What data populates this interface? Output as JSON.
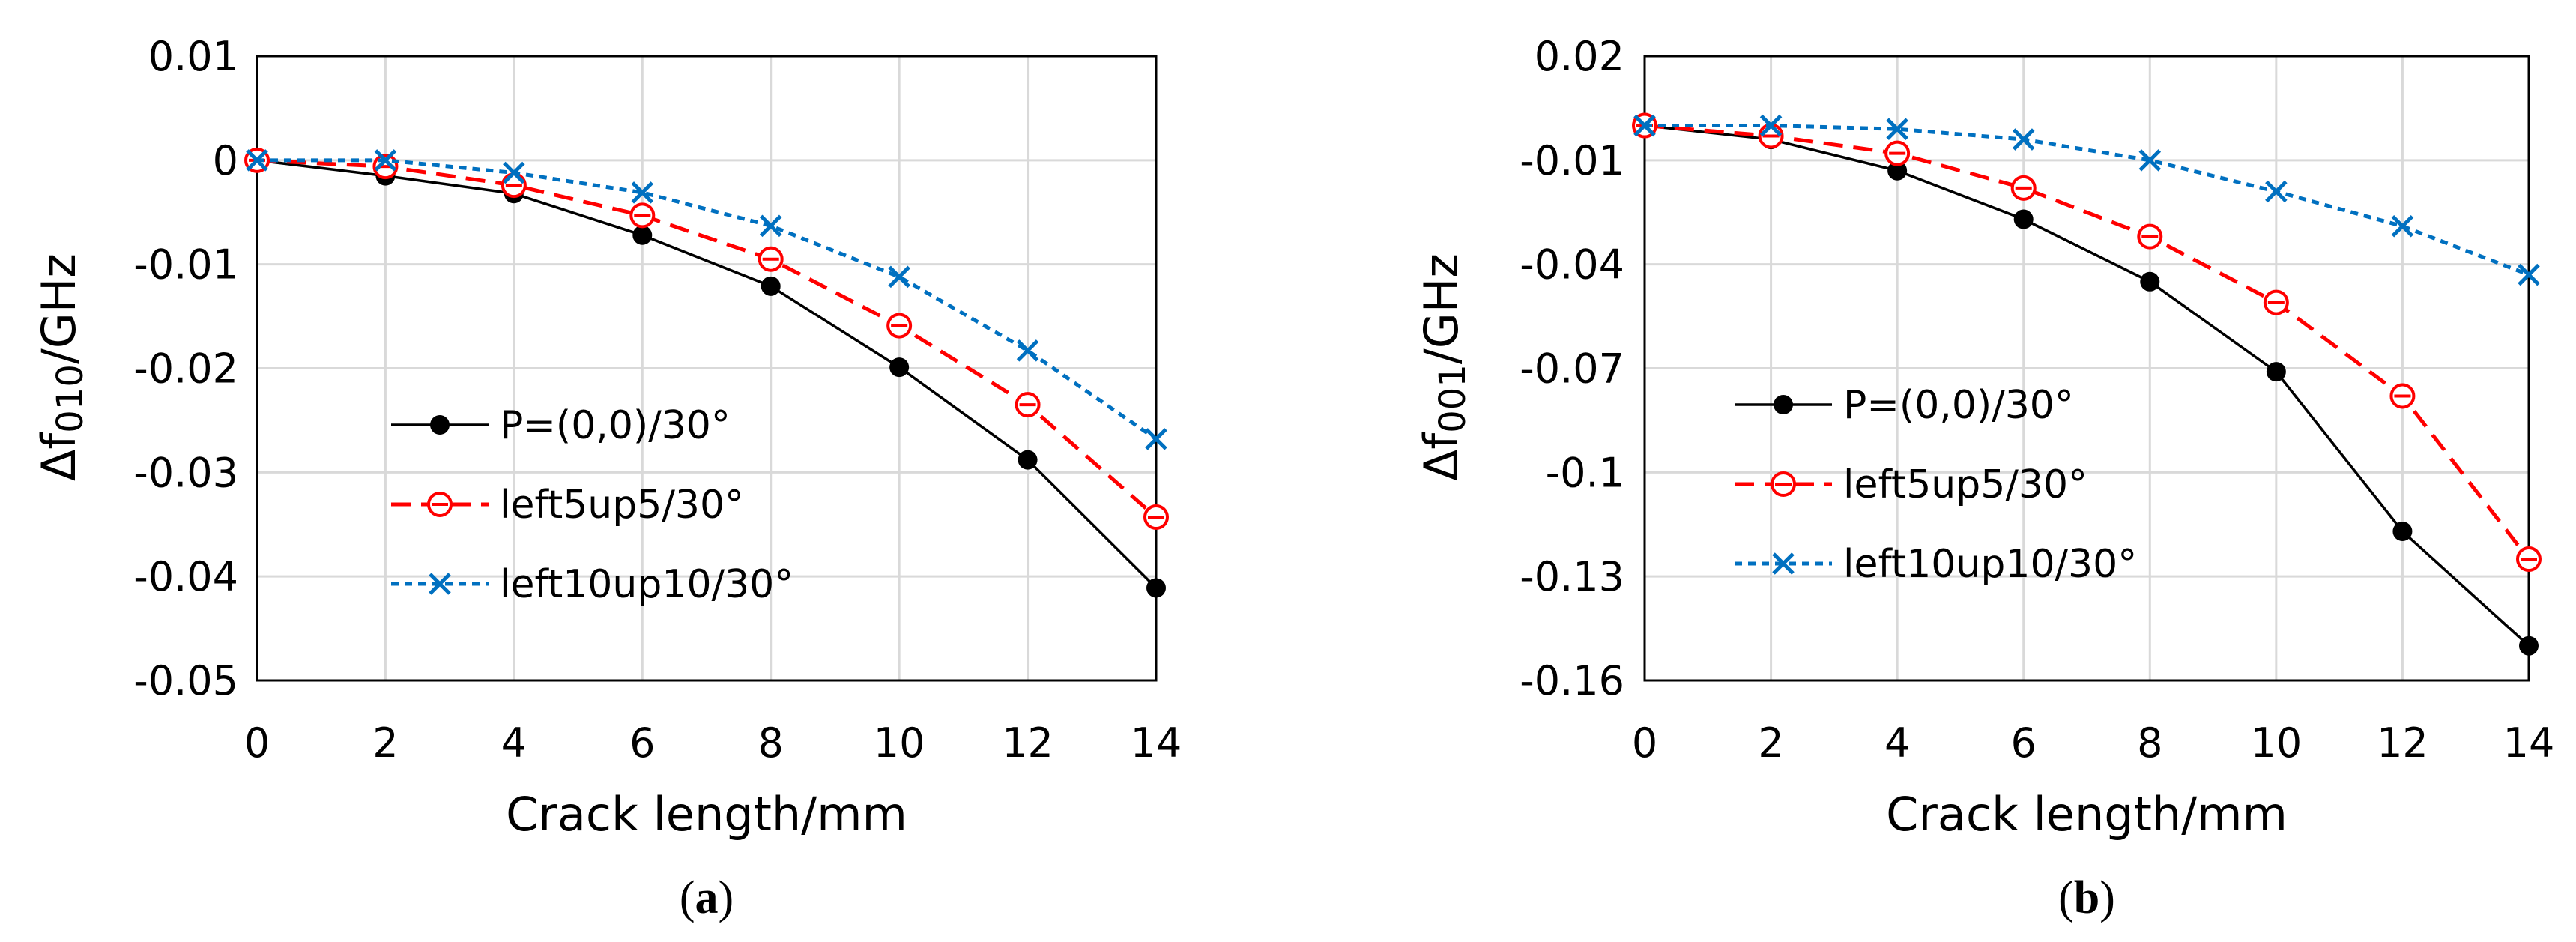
{
  "chart_data": [
    {
      "type": "line",
      "panel_label": "(a)",
      "xlabel": "Crack length/mm",
      "ylabel": "Δf010/GHz",
      "ylabel_prefix": "Δf",
      "ylabel_subscript": "010",
      "ylabel_suffix": "/GHz",
      "xlim": [
        0,
        14
      ],
      "ylim": [
        -0.05,
        0.01
      ],
      "x_ticks": [
        0,
        2,
        4,
        6,
        8,
        10,
        12,
        14
      ],
      "x_tick_labels": [
        "0",
        "2",
        "4",
        "6",
        "8",
        "10",
        "12",
        "14"
      ],
      "y_ticks": [
        0.01,
        0,
        -0.01,
        -0.02,
        -0.03,
        -0.04,
        -0.05
      ],
      "y_tick_labels": [
        "0.01",
        "0",
        "-0.01",
        "-0.02",
        "-0.03",
        "-0.04",
        "-0.05"
      ],
      "grid": true,
      "legend_position": "bottom-left",
      "x": [
        0,
        2,
        4,
        6,
        8,
        10,
        12,
        14
      ],
      "series": [
        {
          "name": "P=(0,0)/30°",
          "values": [
            0,
            -0.0015,
            -0.0032,
            -0.0072,
            -0.0121,
            -0.0199,
            -0.0288,
            -0.0411
          ]
        },
        {
          "name": "left5up5/30°",
          "values": [
            0,
            -0.0006,
            -0.0024,
            -0.0053,
            -0.0095,
            -0.0159,
            -0.0235,
            -0.0343
          ]
        },
        {
          "name": "left10up10/30°",
          "values": [
            0,
            0,
            -0.0012,
            -0.0031,
            -0.0063,
            -0.0112,
            -0.0183,
            -0.0268
          ]
        }
      ]
    },
    {
      "type": "line",
      "panel_label": "(b)",
      "xlabel": "Crack length/mm",
      "ylabel": "Δf001/GHz",
      "ylabel_prefix": "Δf",
      "ylabel_subscript": "001",
      "ylabel_suffix": "/GHz",
      "xlim": [
        0,
        14
      ],
      "ylim": [
        -0.16,
        0.02
      ],
      "x_ticks": [
        0,
        2,
        4,
        6,
        8,
        10,
        12,
        14
      ],
      "x_tick_labels": [
        "0",
        "2",
        "4",
        "6",
        "8",
        "10",
        "12",
        "14"
      ],
      "y_ticks": [
        0.02,
        -0.01,
        -0.04,
        -0.07,
        -0.1,
        -0.13,
        -0.16
      ],
      "y_tick_labels": [
        "0.02",
        "-0.01",
        "-0.04",
        "-0.07",
        "-0.1",
        "-0.13",
        "-0.16"
      ],
      "grid": true,
      "legend_position": "bottom-left",
      "x": [
        0,
        2,
        4,
        6,
        8,
        10,
        12,
        14
      ],
      "series": [
        {
          "name": "P=(0,0)/30°",
          "values": [
            0,
            -0.004,
            -0.013,
            -0.027,
            -0.045,
            -0.071,
            -0.117,
            -0.15
          ]
        },
        {
          "name": "left5up5/30°",
          "values": [
            0,
            -0.003,
            -0.008,
            -0.018,
            -0.032,
            -0.051,
            -0.078,
            -0.125
          ]
        },
        {
          "name": "left10up10/30°",
          "values": [
            0,
            0,
            -0.001,
            -0.004,
            -0.01,
            -0.019,
            -0.029,
            -0.043
          ]
        }
      ]
    }
  ],
  "series_styles": [
    {
      "color": "#000000",
      "dash": "none",
      "marker": "filled-circle"
    },
    {
      "color": "#ff0000",
      "dash": "dashed",
      "marker": "open-circle-dash"
    },
    {
      "color": "#0070c0",
      "dash": "dotted",
      "marker": "x-mark"
    }
  ]
}
